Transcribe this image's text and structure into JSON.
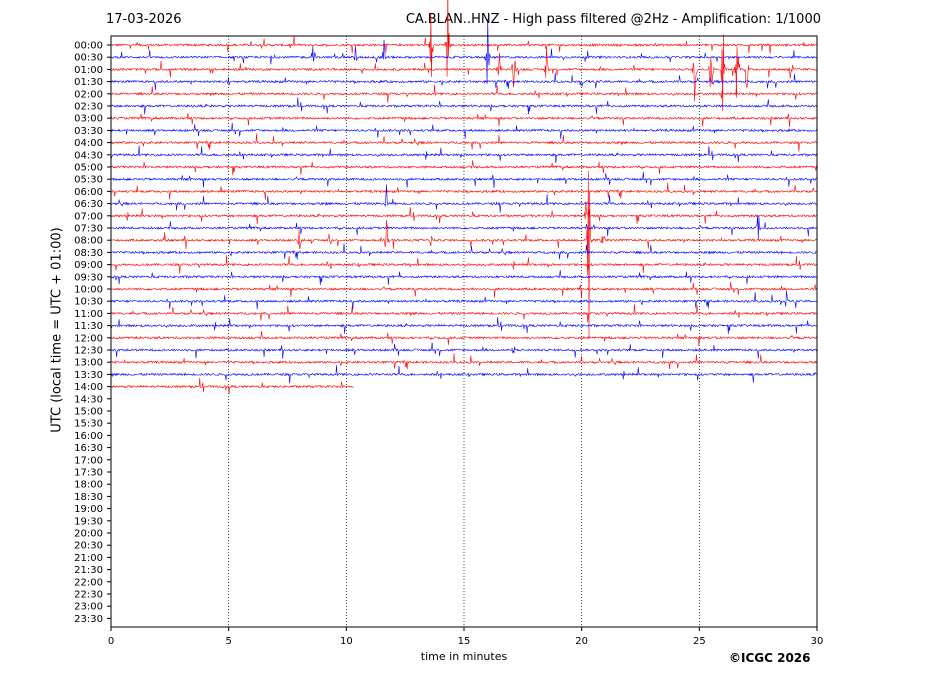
{
  "header": {
    "date": "17-03-2026",
    "title": "CA.BLAN..HNZ - High pass filtered @2Hz - Amplification: 1/1000"
  },
  "footer": {
    "copyright": "©ICGC 2026"
  },
  "chart_data": {
    "type": "line",
    "title": "CA.BLAN..HNZ - High pass filtered @2Hz - Amplification: 1/1000",
    "xlabel": "time in minutes",
    "ylabel": "UTC (local time = UTC + 01:00)",
    "xlim": [
      0,
      30
    ],
    "xticks": [
      "0",
      "5",
      "10",
      "15",
      "20",
      "25",
      "30"
    ],
    "yticks": [
      "00:00",
      "00:30",
      "01:00",
      "01:30",
      "02:00",
      "02:30",
      "03:00",
      "03:30",
      "04:00",
      "04:30",
      "05:00",
      "05:30",
      "06:00",
      "06:30",
      "07:00",
      "07:30",
      "08:00",
      "08:30",
      "09:00",
      "09:30",
      "10:00",
      "10:30",
      "11:00",
      "11:30",
      "12:00",
      "12:30",
      "13:00",
      "13:30",
      "14:00",
      "14:30",
      "15:00",
      "15:30",
      "16:00",
      "16:30",
      "17:00",
      "17:30",
      "18:00",
      "18:30",
      "19:00",
      "19:30",
      "20:00",
      "20:30",
      "21:00",
      "21:30",
      "22:00",
      "22:30",
      "23:00",
      "23:30"
    ],
    "grid": "vertical dotted lines at 5-minute intervals",
    "colors": {
      "even_trace": "#ff0000",
      "odd_trace": "#0000ff"
    },
    "traces_recorded_through": "14:00",
    "last_trace_end_minute": 10.3,
    "events": [
      {
        "trace": "00:00",
        "minute": 14.3,
        "amplitude": 14
      },
      {
        "trace": "00:00",
        "minute": 13.6,
        "amplitude": 10
      },
      {
        "trace": "00:30",
        "minute": 16.0,
        "amplitude": 10
      },
      {
        "trace": "00:30",
        "minute": 8.6,
        "amplitude": 4
      },
      {
        "trace": "00:30",
        "minute": 10.4,
        "amplitude": 4
      },
      {
        "trace": "00:30",
        "minute": 11.6,
        "amplitude": 4
      },
      {
        "trace": "01:00",
        "minute": 25.5,
        "amplitude": 12
      },
      {
        "trace": "01:00",
        "minute": 26.0,
        "amplitude": 12
      },
      {
        "trace": "01:00",
        "minute": 26.6,
        "amplitude": 11
      },
      {
        "trace": "01:00",
        "minute": 27.0,
        "amplitude": 10
      },
      {
        "trace": "01:00",
        "minute": 24.8,
        "amplitude": 7
      },
      {
        "trace": "01:00",
        "minute": 28.9,
        "amplitude": 6
      },
      {
        "trace": "01:00",
        "minute": 17.1,
        "amplitude": 5
      },
      {
        "trace": "01:00",
        "minute": 18.5,
        "amplitude": 5
      },
      {
        "trace": "01:00",
        "minute": 16.5,
        "amplitude": 4
      },
      {
        "trace": "01:30",
        "minute": 20.0,
        "amplitude": 2
      },
      {
        "trace": "01:30",
        "minute": 5.0,
        "amplitude": 1.5
      },
      {
        "trace": "06:30",
        "minute": 11.7,
        "amplitude": 4
      },
      {
        "trace": "07:00",
        "minute": 20.2,
        "amplitude": 6
      },
      {
        "trace": "07:30",
        "minute": 27.5,
        "amplitude": 6
      },
      {
        "trace": "08:00",
        "minute": 20.3,
        "amplitude": 24
      },
      {
        "trace": "08:00",
        "minute": 20.9,
        "amplitude": 6
      },
      {
        "trace": "08:00",
        "minute": 11.7,
        "amplitude": 6
      },
      {
        "trace": "08:00",
        "minute": 13.6,
        "amplitude": 2
      },
      {
        "trace": "08:00",
        "minute": 8.0,
        "amplitude": 4
      },
      {
        "trace": "08:00",
        "minute": 9.3,
        "amplitude": 3
      },
      {
        "trace": "08:00",
        "minute": 2.3,
        "amplitude": 2
      },
      {
        "trace": "10:30",
        "minute": 28.7,
        "amplitude": 2
      },
      {
        "trace": "12:30",
        "minute": 17.1,
        "amplitude": 1
      }
    ]
  }
}
